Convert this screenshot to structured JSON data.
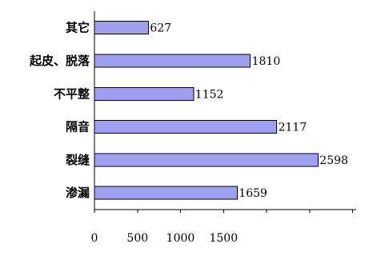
{
  "chart_data": {
    "type": "bar",
    "orientation": "horizontal",
    "categories": [
      "其它",
      "起皮、脱落",
      "不平整",
      "隔音",
      "裂缝",
      "渗漏"
    ],
    "values": [
      627,
      1810,
      1152,
      2117,
      2598,
      1659
    ],
    "data_labels": [
      "627",
      "1810",
      "1152",
      "2117",
      "2598",
      "1659"
    ],
    "x_ticks": [
      "0",
      "500",
      "1000",
      "1500"
    ],
    "xlim": [
      0,
      3000
    ],
    "grid": false,
    "legend": "none",
    "title": "",
    "xlabel": "",
    "ylabel": "",
    "colors": {
      "bar_fill": "#a0a0f0",
      "bar_stroke": "#000000",
      "axis": "#000000"
    }
  }
}
